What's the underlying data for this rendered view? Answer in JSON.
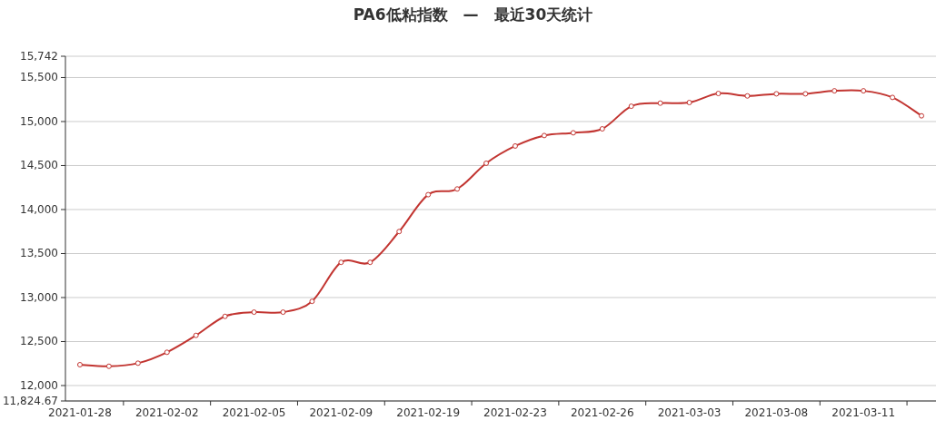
{
  "chart_data": {
    "type": "line",
    "title": "PA6低粘指数　—　最近30天统计",
    "categories": [
      "2021-01-28",
      null,
      null,
      "2021-02-02",
      null,
      null,
      "2021-02-05",
      null,
      null,
      "2021-02-09",
      null,
      null,
      "2021-02-19",
      null,
      null,
      "2021-02-23",
      null,
      null,
      "2021-02-26",
      null,
      null,
      "2021-03-03",
      null,
      null,
      "2021-03-08",
      null,
      null,
      "2021-03-11",
      null,
      null
    ],
    "series": [
      {
        "color": "#c23531",
        "values": [
          12237,
          12219,
          12254,
          12378,
          12570,
          12786,
          12834,
          12834,
          12957,
          13400,
          13400,
          13750,
          14169,
          14234,
          14526,
          14722,
          14841,
          14872,
          14917,
          15174,
          15209,
          15216,
          15319,
          15291,
          15315,
          15315,
          15349,
          15349,
          15274,
          15065
        ]
      }
    ],
    "ylim": [
      11824.67,
      15742
    ],
    "yticks": [
      {
        "value": 11824.67,
        "label": "11,824.67"
      },
      {
        "value": 12000,
        "label": "12,000"
      },
      {
        "value": 12500,
        "label": "12,500"
      },
      {
        "value": 13000,
        "label": "13,000"
      },
      {
        "value": 13500,
        "label": "13,500"
      },
      {
        "value": 14000,
        "label": "14,000"
      },
      {
        "value": 14500,
        "label": "14,500"
      },
      {
        "value": 15000,
        "label": "15,000"
      },
      {
        "value": 15500,
        "label": "15,500"
      },
      {
        "value": 15742,
        "label": "15,742"
      }
    ],
    "grid": "y",
    "marker": "circle",
    "line_style": "solid"
  }
}
